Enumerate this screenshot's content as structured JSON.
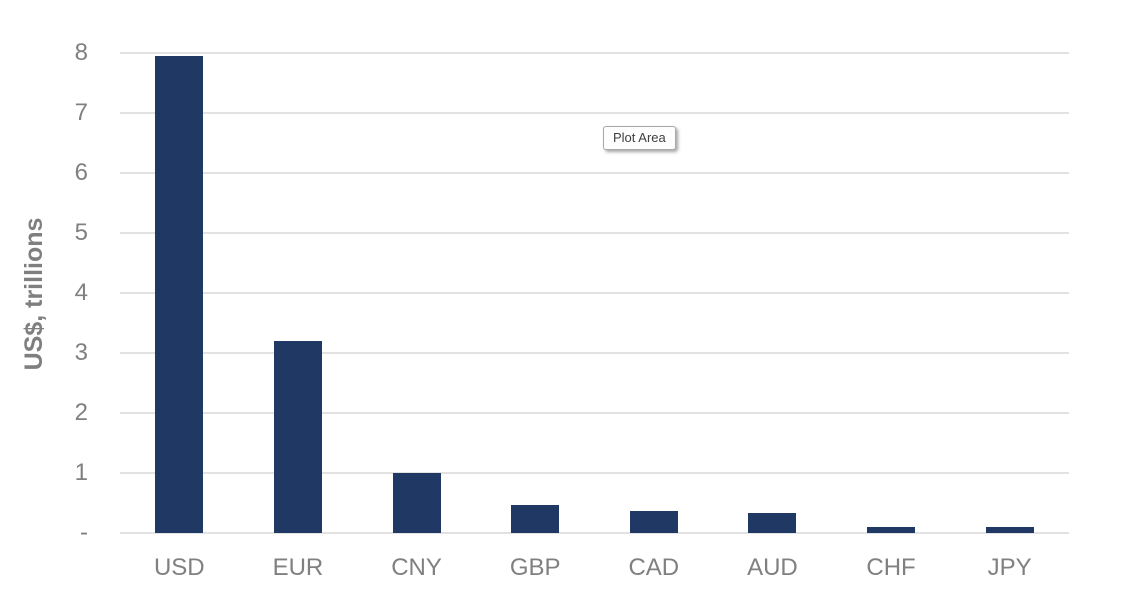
{
  "tooltip": {
    "label": "Plot Area"
  },
  "chart_data": {
    "type": "bar",
    "categories": [
      "USD",
      "EUR",
      "CNY",
      "GBP",
      "CAD",
      "AUD",
      "CHF",
      "JPY"
    ],
    "values": [
      7.95,
      3.2,
      1.0,
      0.47,
      0.37,
      0.34,
      0.1,
      0.1
    ],
    "title": "",
    "xlabel": "",
    "ylabel": "US$, trillions",
    "ylim": [
      0,
      8
    ],
    "yticks": [
      0,
      1,
      2,
      3,
      4,
      5,
      6,
      7,
      8
    ],
    "ytick_labels": [
      "-",
      "1",
      "2",
      "3",
      "4",
      "5",
      "6",
      "7",
      "8"
    ],
    "grid": true,
    "legend": false,
    "colors": {
      "bar": "#1F3864",
      "gridline": "#e2e2e2",
      "tick_text": "#808080",
      "axis_title_text": "#7f7f7f"
    }
  }
}
